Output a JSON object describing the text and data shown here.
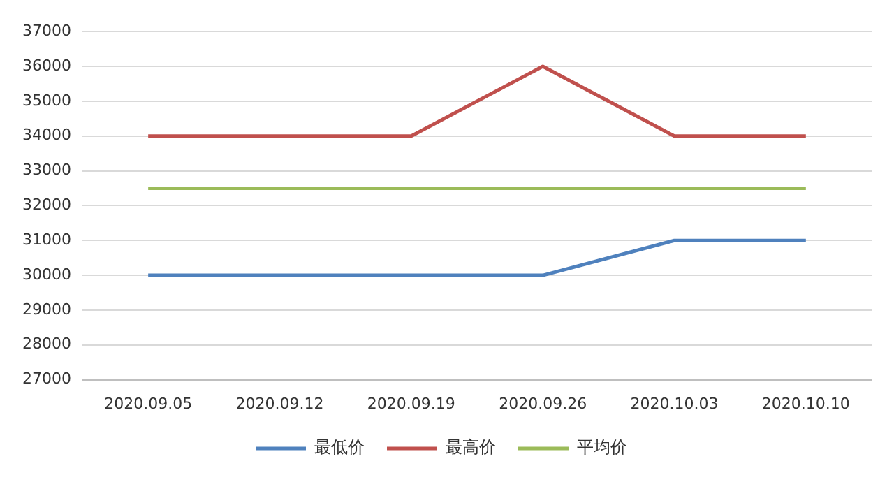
{
  "chart_data": {
    "type": "line",
    "categories": [
      "2020.09.05",
      "2020.09.12",
      "2020.09.19",
      "2020.09.26",
      "2020.10.03",
      "2020.10.10"
    ],
    "series": [
      {
        "name": "最低价",
        "color": "#4f81bd",
        "values": [
          30000,
          30000,
          30000,
          30000,
          31000,
          31000
        ]
      },
      {
        "name": "最高价",
        "color": "#c0504d",
        "values": [
          34000,
          34000,
          34000,
          36000,
          34000,
          34000
        ]
      },
      {
        "name": "平均价",
        "color": "#9bbb59",
        "values": [
          32500,
          32500,
          32500,
          32500,
          32500,
          32500
        ]
      }
    ],
    "ylim": [
      27000,
      37000
    ],
    "yticks": [
      27000,
      28000,
      29000,
      30000,
      31000,
      32000,
      33000,
      34000,
      35000,
      36000,
      37000
    ],
    "grid": "y",
    "legend": "bottom",
    "marker": "none",
    "line_style": "solid"
  }
}
